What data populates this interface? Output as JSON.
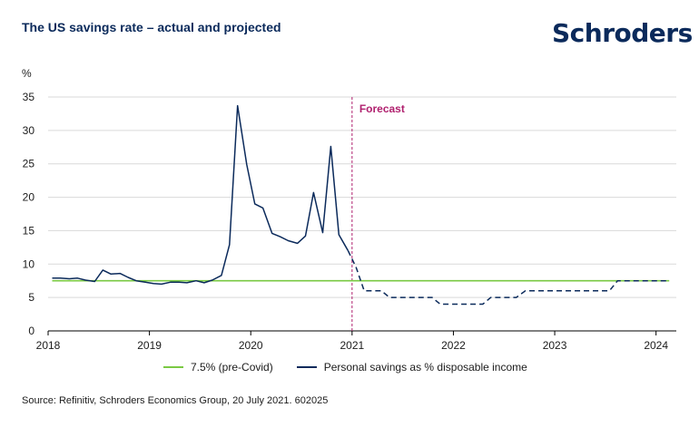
{
  "header": {
    "title": "The US savings rate – actual and projected",
    "logo_text": "Schroders"
  },
  "source": "Source: Refinitiv, Schroders Economics Group, 20 July 2021. 602025",
  "colors": {
    "navy": "#0b2a5b",
    "green": "#7ac943",
    "forecast": "#b0206e",
    "grid": "#d9d9d9"
  },
  "chart_data": {
    "type": "line",
    "ylabel": "%",
    "ylim": [
      0,
      35
    ],
    "yticks": [
      0,
      5,
      10,
      15,
      20,
      25,
      30,
      35
    ],
    "xlim": [
      2018,
      2024.2
    ],
    "xticks": [
      "2018",
      "2019",
      "2020",
      "2021",
      "2022",
      "2023",
      "2024"
    ],
    "grid": "horizontal",
    "legend_position": "bottom",
    "annotation": {
      "label": "Forecast",
      "x": 2021
    },
    "series": [
      {
        "name": "7.5% (pre-Covid)",
        "style": "solid",
        "x": [
          2018.04,
          2024.13
        ],
        "y": [
          7.5,
          7.5
        ]
      },
      {
        "name": "Personal savings as % disposable income",
        "style": "solid",
        "x": [
          2018.04,
          2018.12,
          2018.21,
          2018.29,
          2018.37,
          2018.46,
          2018.54,
          2018.62,
          2018.71,
          2018.79,
          2018.87,
          2018.96,
          2019.04,
          2019.12,
          2019.21,
          2019.29,
          2019.37,
          2019.46,
          2019.54,
          2019.62,
          2019.71,
          2019.79,
          2019.87,
          2019.96,
          2020.04,
          2020.12,
          2020.21,
          2020.29,
          2020.37,
          2020.46,
          2020.54,
          2020.62,
          2020.71,
          2020.79,
          2020.87,
          2020.96
        ],
        "y": [
          7.9,
          7.9,
          7.8,
          7.9,
          7.6,
          7.4,
          9.1,
          8.5,
          8.6,
          8.0,
          7.5,
          7.3,
          7.1,
          7.0,
          7.3,
          7.3,
          7.2,
          7.5,
          7.2,
          7.6,
          8.3,
          12.9,
          33.7,
          24.9,
          19.0,
          18.4,
          14.6,
          14.1,
          13.5,
          13.1,
          14.2,
          20.7,
          14.7,
          27.6,
          14.4,
          12.0
        ]
      },
      {
        "name": "Personal savings as % disposable income (projected)",
        "style": "dashed",
        "x": [
          2020.96,
          2021.04,
          2021.12,
          2021.29,
          2021.37,
          2021.79,
          2021.87,
          2022.29,
          2022.37,
          2022.62,
          2022.71,
          2023.54,
          2023.62,
          2024.13
        ],
        "y": [
          12.0,
          9.5,
          6.0,
          6.0,
          5.0,
          5.0,
          4.0,
          4.0,
          5.0,
          5.0,
          6.0,
          6.0,
          7.5,
          7.5
        ]
      }
    ]
  }
}
